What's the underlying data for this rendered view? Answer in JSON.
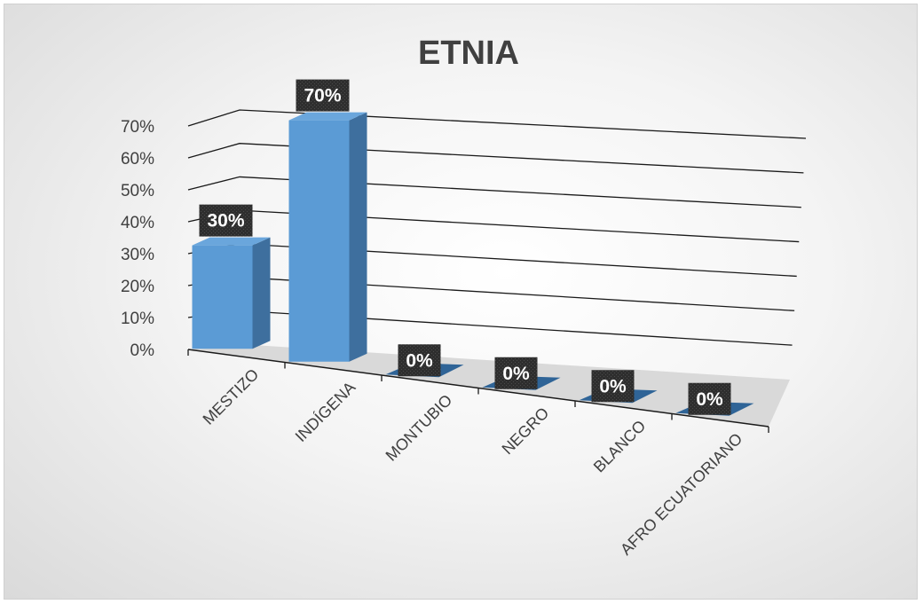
{
  "chart_data": {
    "type": "bar",
    "title": "ETNIA",
    "categories": [
      "MESTIZO",
      "INDÍGENA",
      "MONTUBIO",
      "NEGRO",
      "BLANCO",
      "AFRO ECUATORIANO"
    ],
    "values": [
      30,
      70,
      0,
      0,
      0,
      0
    ],
    "data_labels": [
      "30%",
      "70%",
      "0%",
      "0%",
      "0%",
      "0%"
    ],
    "yticks": [
      "0%",
      "10%",
      "20%",
      "30%",
      "40%",
      "50%",
      "60%",
      "70%"
    ],
    "ylim": [
      0,
      70
    ],
    "unit": "%",
    "grid": true,
    "legend": "none",
    "bar_color": "#5b9bd5"
  }
}
